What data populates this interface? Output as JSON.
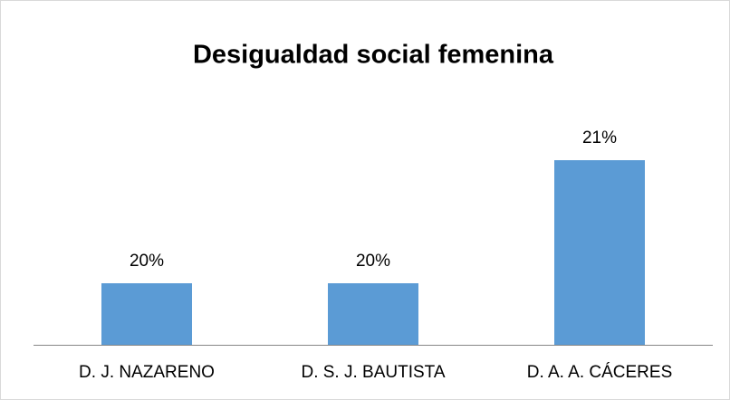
{
  "chart_data": {
    "type": "bar",
    "title": "Desigualdad social femenina",
    "categories": [
      "D. J. NAZARENO",
      "D. S. J. BAUTISTA",
      "D. A. A. CÁCERES"
    ],
    "values": [
      20,
      20,
      21
    ],
    "value_labels": [
      "20%",
      "20%",
      "21%"
    ],
    "color": "#5b9bd5",
    "ylim": [
      19.5,
      21.5
    ]
  }
}
